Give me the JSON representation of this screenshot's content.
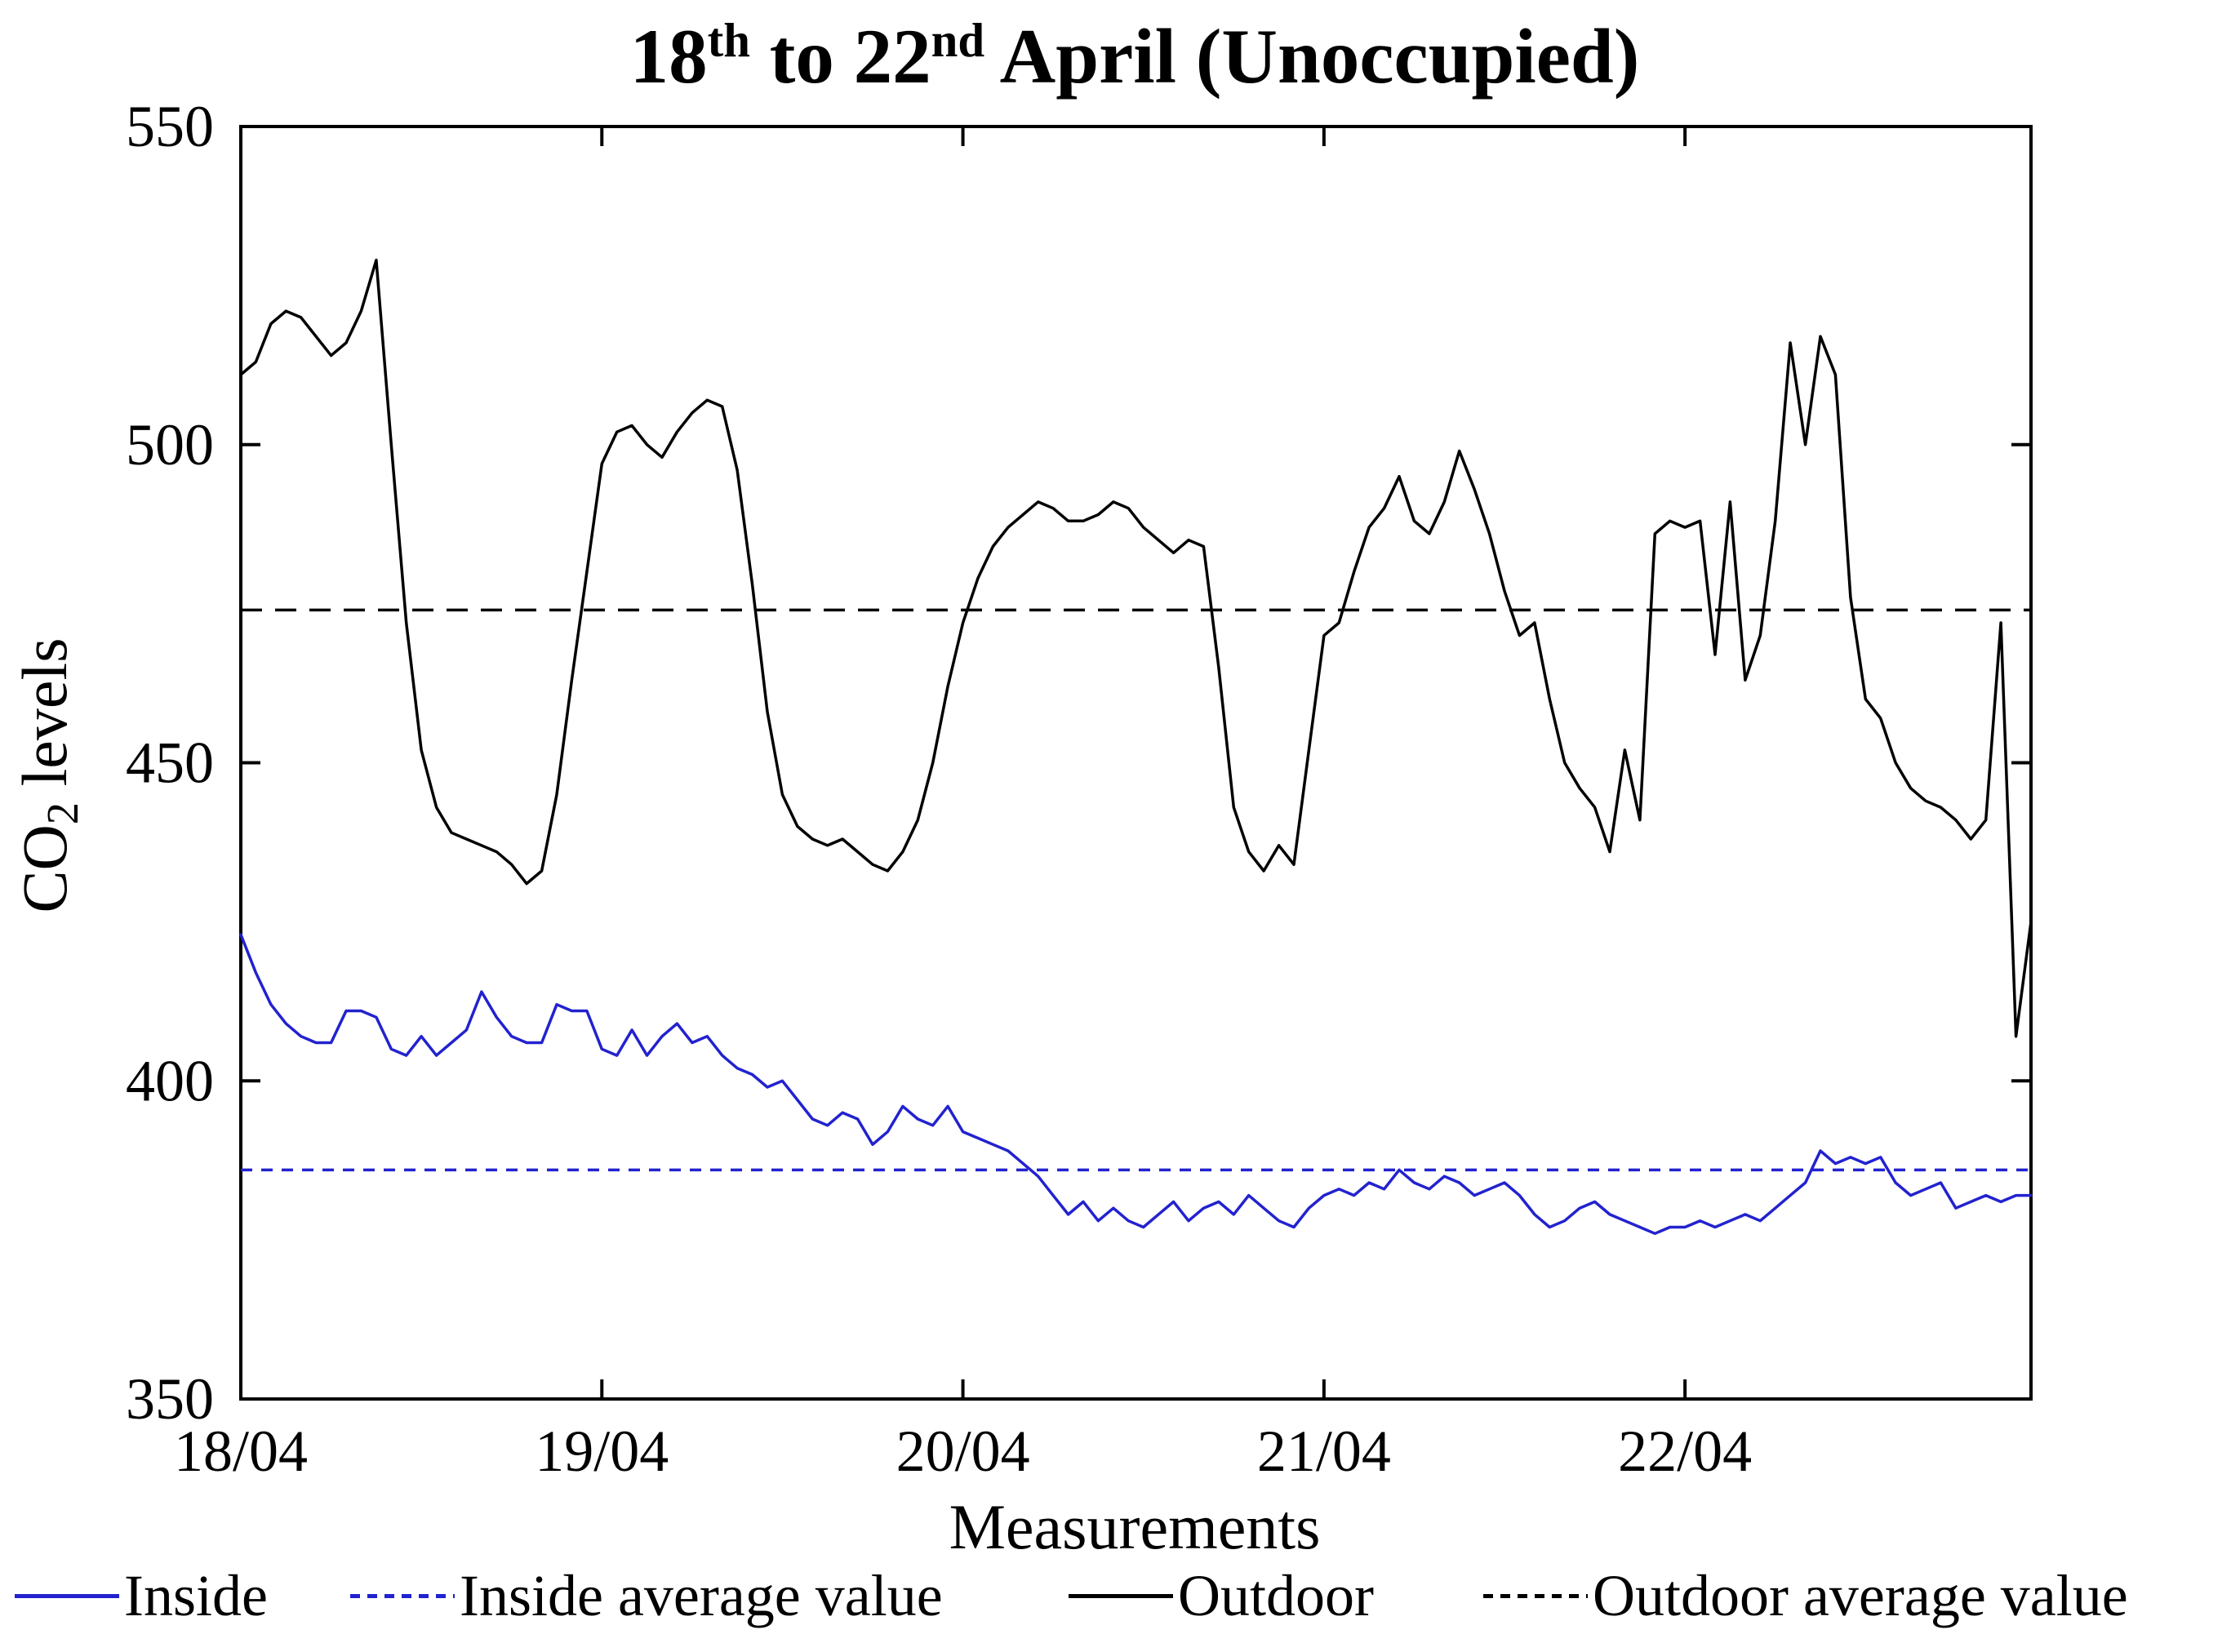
{
  "figure": {
    "title": {
      "n1": "18",
      "sup1": "th",
      "mid": " to 22",
      "sup2": "nd",
      "rest": " April (Unoccupied)"
    },
    "x_label": "Measurements",
    "y_label_pre": "CO",
    "y_label_sub": "2",
    "y_label_post": " levels"
  },
  "legend": [
    {
      "label": "Inside",
      "color": "#2222cf",
      "style": "solid"
    },
    {
      "label": "Inside average value",
      "color": "#2222cf",
      "style": "dotted"
    },
    {
      "label": "Outdoor",
      "color": "#000000",
      "style": "solid"
    },
    {
      "label": "Outdoor average value",
      "color": "#000000",
      "style": "dotted"
    }
  ],
  "chart_data": {
    "type": "line",
    "title": "18th to 22nd April (Unoccupied)",
    "xlabel": "Measurements",
    "ylabel": "CO2 levels",
    "ylim": [
      350,
      550
    ],
    "y_ticks": [
      350,
      400,
      450,
      500,
      550
    ],
    "x_tick_labels": [
      "18/04",
      "19/04",
      "20/04",
      "21/04",
      "22/04"
    ],
    "x_tick_positions": [
      0,
      24,
      48,
      72,
      96
    ],
    "x_max": 119,
    "grid": false,
    "legend_position": "below-figure",
    "axis_color": "#000000",
    "series": [
      {
        "name": "Inside",
        "color": "#2222cf",
        "style": "solid",
        "values": [
          423,
          417,
          412,
          409,
          407,
          406,
          406,
          411,
          411,
          410,
          405,
          404,
          407,
          404,
          406,
          408,
          414,
          410,
          407,
          406,
          406,
          412,
          411,
          411,
          405,
          404,
          408,
          404,
          407,
          409,
          406,
          407,
          404,
          402,
          401,
          399,
          400,
          397,
          394,
          393,
          395,
          394,
          390,
          392,
          396,
          394,
          393,
          396,
          392,
          391,
          390,
          389,
          387,
          385,
          382,
          379,
          381,
          378,
          380,
          378,
          377,
          379,
          381,
          378,
          380,
          381,
          379,
          382,
          380,
          378,
          377,
          380,
          382,
          383,
          382,
          384,
          383,
          386,
          384,
          383,
          385,
          384,
          382,
          383,
          384,
          382,
          379,
          377,
          378,
          380,
          381,
          379,
          378,
          377,
          376,
          377,
          377,
          378,
          377,
          378,
          379,
          378,
          380,
          382,
          384,
          389,
          387,
          388,
          387,
          388,
          384,
          382,
          383,
          384,
          380,
          381,
          382,
          381,
          382,
          382
        ]
      },
      {
        "name": "Inside average value",
        "color": "#2222cf",
        "style": "dotted",
        "value": 386
      },
      {
        "name": "Outdoor",
        "color": "#000000",
        "style": "solid",
        "values": [
          511,
          513,
          519,
          521,
          520,
          517,
          514,
          516,
          521,
          529,
          500,
          472,
          452,
          443,
          439,
          438,
          437,
          436,
          434,
          431,
          433,
          445,
          463,
          480,
          497,
          502,
          503,
          500,
          498,
          502,
          505,
          507,
          506,
          496,
          478,
          458,
          445,
          440,
          438,
          437,
          438,
          436,
          434,
          433,
          436,
          441,
          450,
          462,
          472,
          479,
          484,
          487,
          489,
          491,
          490,
          488,
          488,
          489,
          491,
          490,
          487,
          485,
          483,
          485,
          484,
          465,
          443,
          436,
          433,
          437,
          434,
          452,
          470,
          472,
          480,
          487,
          490,
          495,
          488,
          486,
          491,
          499,
          493,
          486,
          477,
          470,
          472,
          460,
          450,
          446,
          443,
          436,
          452,
          441,
          486,
          488,
          487,
          488,
          467,
          491,
          463,
          470,
          488,
          516,
          500,
          517,
          511,
          476,
          460,
          457,
          450,
          446,
          444,
          443,
          441,
          438,
          441,
          472,
          407,
          425
        ]
      },
      {
        "name": "Outdoor average value",
        "color": "#000000",
        "style": "dotted",
        "value": 474
      }
    ]
  }
}
